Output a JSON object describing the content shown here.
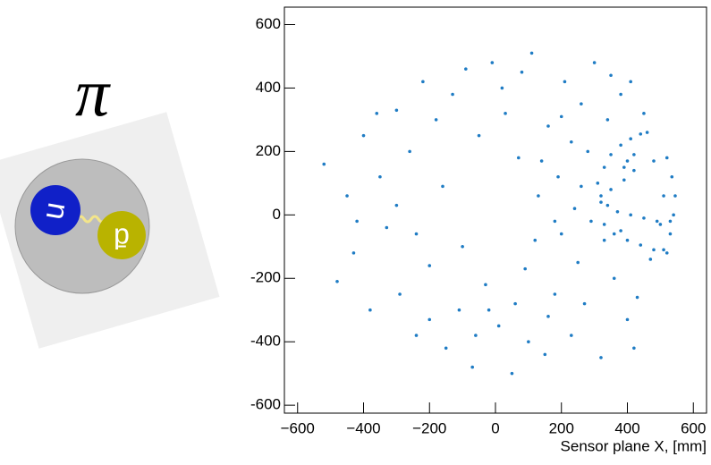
{
  "illustration": {
    "symbol": "π",
    "quark1": "u",
    "quark2": "d̄"
  },
  "chart_data": {
    "type": "scatter",
    "x_label": "Sensor plane X, [mm]",
    "color": "#1f7cc4",
    "xlim": [
      -640,
      640
    ],
    "ylim": [
      -625,
      655
    ],
    "xticks": [
      {
        "value": -600,
        "label": "−600"
      },
      {
        "value": -400,
        "label": "−400"
      },
      {
        "value": -200,
        "label": "−200"
      },
      0,
      200,
      400,
      600
    ],
    "yticks": [
      -600,
      -400,
      -200,
      0,
      200,
      400,
      600
    ],
    "x": [
      -520,
      -480,
      -450,
      -430,
      -400,
      -380,
      -350,
      -330,
      -300,
      -290,
      -260,
      -240,
      -220,
      -200,
      -180,
      -150,
      -130,
      -110,
      -90,
      -70,
      -50,
      -30,
      -10,
      10,
      30,
      50,
      70,
      90,
      110,
      120,
      130,
      150,
      160,
      180,
      190,
      200,
      210,
      230,
      240,
      250,
      260,
      270,
      280,
      290,
      300,
      320,
      340,
      360,
      380,
      400,
      410,
      430,
      450,
      470,
      480,
      500,
      510,
      230,
      180,
      140,
      -160,
      -240,
      -420,
      -360,
      -200,
      60,
      100,
      20,
      -60,
      350,
      420,
      330,
      260,
      200,
      -100,
      -300,
      160,
      80,
      -20,
      380,
      310,
      330,
      350,
      380,
      410,
      440,
      460,
      520,
      535,
      545,
      540,
      530,
      510,
      320,
      340,
      370,
      410,
      450,
      490,
      530,
      320,
      350,
      390,
      420,
      330,
      360,
      400,
      440,
      480,
      520,
      420,
      400,
      390
    ],
    "values": [
      160,
      -210,
      60,
      -120,
      250,
      -300,
      120,
      -40,
      330,
      -250,
      200,
      -380,
      420,
      -160,
      300,
      -420,
      380,
      -300,
      460,
      -480,
      250,
      -220,
      480,
      -350,
      320,
      -500,
      180,
      -170,
      510,
      -80,
      60,
      -440,
      280,
      -250,
      120,
      -60,
      420,
      -380,
      20,
      -150,
      350,
      -280,
      200,
      -20,
      480,
      -450,
      300,
      -200,
      380,
      -330,
      420,
      -260,
      320,
      -140,
      170,
      -30,
      60,
      230,
      -20,
      170,
      90,
      -60,
      -20,
      320,
      -330,
      -280,
      -400,
      400,
      -380,
      440,
      -420,
      -80,
      90,
      310,
      -100,
      30,
      -320,
      450,
      -300,
      -50,
      100,
      150,
      190,
      220,
      240,
      255,
      260,
      180,
      120,
      60,
      0,
      -60,
      -110,
      60,
      30,
      10,
      0,
      -10,
      -20,
      -20,
      40,
      80,
      110,
      140,
      -30,
      -60,
      -80,
      -95,
      -110,
      -120,
      190,
      170,
      150
    ]
  }
}
